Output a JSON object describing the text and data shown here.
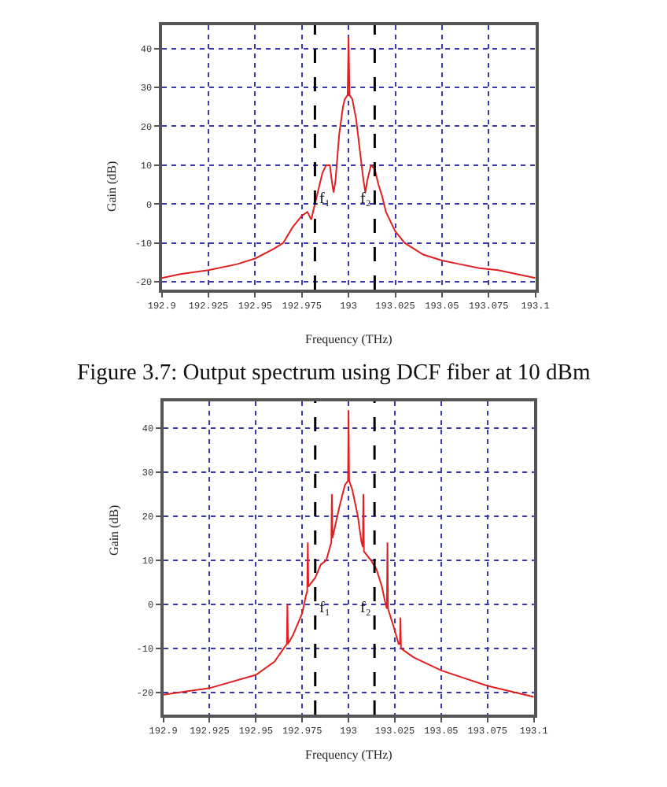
{
  "chart_data": [
    {
      "type": "line",
      "title": "Figure 3.7: Output spectrum using DCF fiber at 10 dBm",
      "xlabel": "Frequency (THz)",
      "ylabel": "Gain (dB)",
      "series": [
        {
          "color": "#e02020",
          "x": [
            192.9,
            192.91,
            192.925,
            192.94,
            192.95,
            192.96,
            192.965,
            192.97,
            192.975,
            192.978,
            192.98,
            192.982,
            192.984,
            192.986,
            192.988,
            192.99,
            192.991,
            192.992,
            192.993,
            192.995,
            192.997,
            192.998,
            192.9995,
            193.0,
            193.0005,
            193.002,
            193.004,
            193.006,
            193.008,
            193.009,
            193.01,
            193.012,
            193.014,
            193.016,
            193.018,
            193.02,
            193.022,
            193.025,
            193.03,
            193.035,
            193.04,
            193.05,
            193.06,
            193.07,
            193.08,
            193.09,
            193.1
          ],
          "values": [
            -19,
            -18,
            -17,
            -15.5,
            -14,
            -11.5,
            -10,
            -6,
            -3,
            -2,
            -4,
            0,
            4,
            8,
            10,
            10,
            6,
            3,
            6,
            18,
            25,
            27,
            28,
            43,
            28,
            27,
            22,
            14,
            6,
            3,
            6,
            10,
            9,
            5,
            2,
            -2,
            -4,
            -7,
            -10,
            -11.5,
            -13,
            -14.5,
            -15.5,
            -16.5,
            -17,
            -18,
            -19
          ]
        }
      ],
      "xlim": [
        192.9,
        193.1
      ],
      "xticks": [
        192.9,
        192.925,
        192.95,
        192.975,
        193,
        193.025,
        193.05,
        193.075,
        193.1
      ],
      "ylim": [
        -22,
        46
      ],
      "yticks": [
        -20,
        -10,
        0,
        10,
        20,
        30,
        40
      ],
      "ref_lines": [
        {
          "axis": "x",
          "value": 192.982,
          "label": "f₁",
          "color": "#000000",
          "line_style": "dashed"
        },
        {
          "axis": "x",
          "value": 193.014,
          "label": "f₂",
          "color": "#000000",
          "line_style": "dashed"
        }
      ],
      "grid": true
    },
    {
      "type": "line",
      "xlabel": "Frequency (THz)",
      "ylabel": "Gain (dB)",
      "series": [
        {
          "color": "#e02020",
          "x": [
            192.9,
            192.925,
            192.95,
            192.96,
            192.965,
            192.9667,
            192.967,
            192.9673,
            192.97,
            192.975,
            192.977,
            192.9777,
            192.978,
            192.9783,
            192.982,
            192.985,
            192.988,
            192.99,
            192.9907,
            192.991,
            192.9913,
            192.995,
            192.998,
            192.9997,
            193.0,
            193.0003,
            193.002,
            193.005,
            193.007,
            193.0077,
            193.008,
            193.0083,
            193.012,
            193.015,
            193.018,
            193.02,
            193.0207,
            193.021,
            193.0213,
            193.025,
            193.027,
            193.0277,
            193.028,
            193.0283,
            193.035,
            193.05,
            193.075,
            193.1
          ],
          "values": [
            -20.5,
            -19,
            -16,
            -13,
            -10,
            -9,
            0,
            -9,
            -7,
            -2,
            2,
            3,
            14,
            4,
            6,
            9,
            10,
            13,
            14,
            25,
            15,
            22,
            27,
            28,
            44,
            28,
            26,
            20,
            14,
            13,
            25,
            12,
            10,
            8,
            4,
            0,
            -1,
            14,
            -1,
            -6,
            -9,
            -9,
            -3,
            -10,
            -12,
            -15,
            -18.5,
            -21
          ]
        }
      ],
      "xlim": [
        192.9,
        193.1
      ],
      "xticks": [
        192.9,
        192.925,
        192.95,
        192.975,
        193,
        193.025,
        193.05,
        193.075,
        193.1
      ],
      "ylim": [
        -25,
        46
      ],
      "yticks": [
        -20,
        -10,
        0,
        10,
        20,
        30,
        40
      ],
      "ref_lines": [
        {
          "axis": "x",
          "value": 192.982,
          "label": "f₁",
          "color": "#000000",
          "line_style": "dashed"
        },
        {
          "axis": "x",
          "value": 193.014,
          "label": "f₂",
          "color": "#000000",
          "line_style": "dashed"
        }
      ],
      "grid": true
    }
  ]
}
